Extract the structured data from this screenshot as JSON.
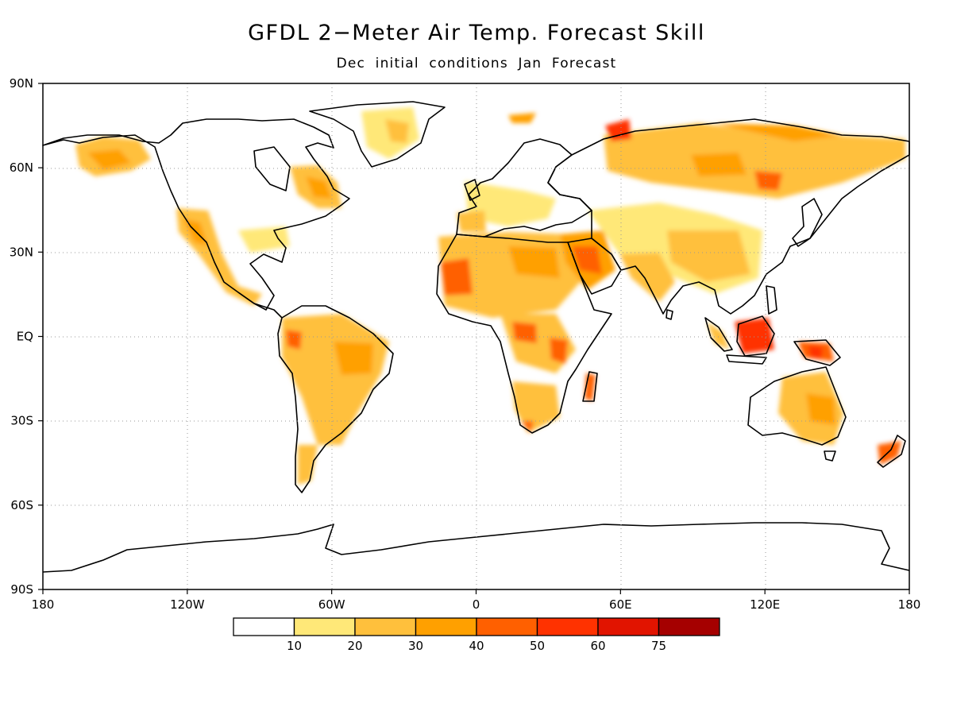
{
  "title": "GFDL 2−Meter Air Temp. Forecast Skill",
  "subtitle": "Dec initial conditions   Jan Forecast",
  "axes": {
    "lat_labels": [
      "90N",
      "60N",
      "30N",
      "EQ",
      "30S",
      "60S",
      "90S"
    ],
    "lon_labels": [
      "180",
      "120W",
      "60W",
      "0",
      "60E",
      "120E",
      "180"
    ],
    "lat_values": [
      90,
      60,
      30,
      0,
      -30,
      -60,
      -90
    ],
    "lon_values": [
      -180,
      -120,
      -60,
      0,
      60,
      120,
      180
    ]
  },
  "colorbar": {
    "labels": [
      "10",
      "20",
      "30",
      "40",
      "50",
      "60",
      "75"
    ],
    "colors": [
      "#ffffff",
      "#ffe878",
      "#ffc03c",
      "#ffa000",
      "#ff6000",
      "#ff3200",
      "#e11400",
      "#a50000"
    ]
  },
  "colors": {
    "land_outline": "#000000",
    "gridline": "#999999"
  }
}
